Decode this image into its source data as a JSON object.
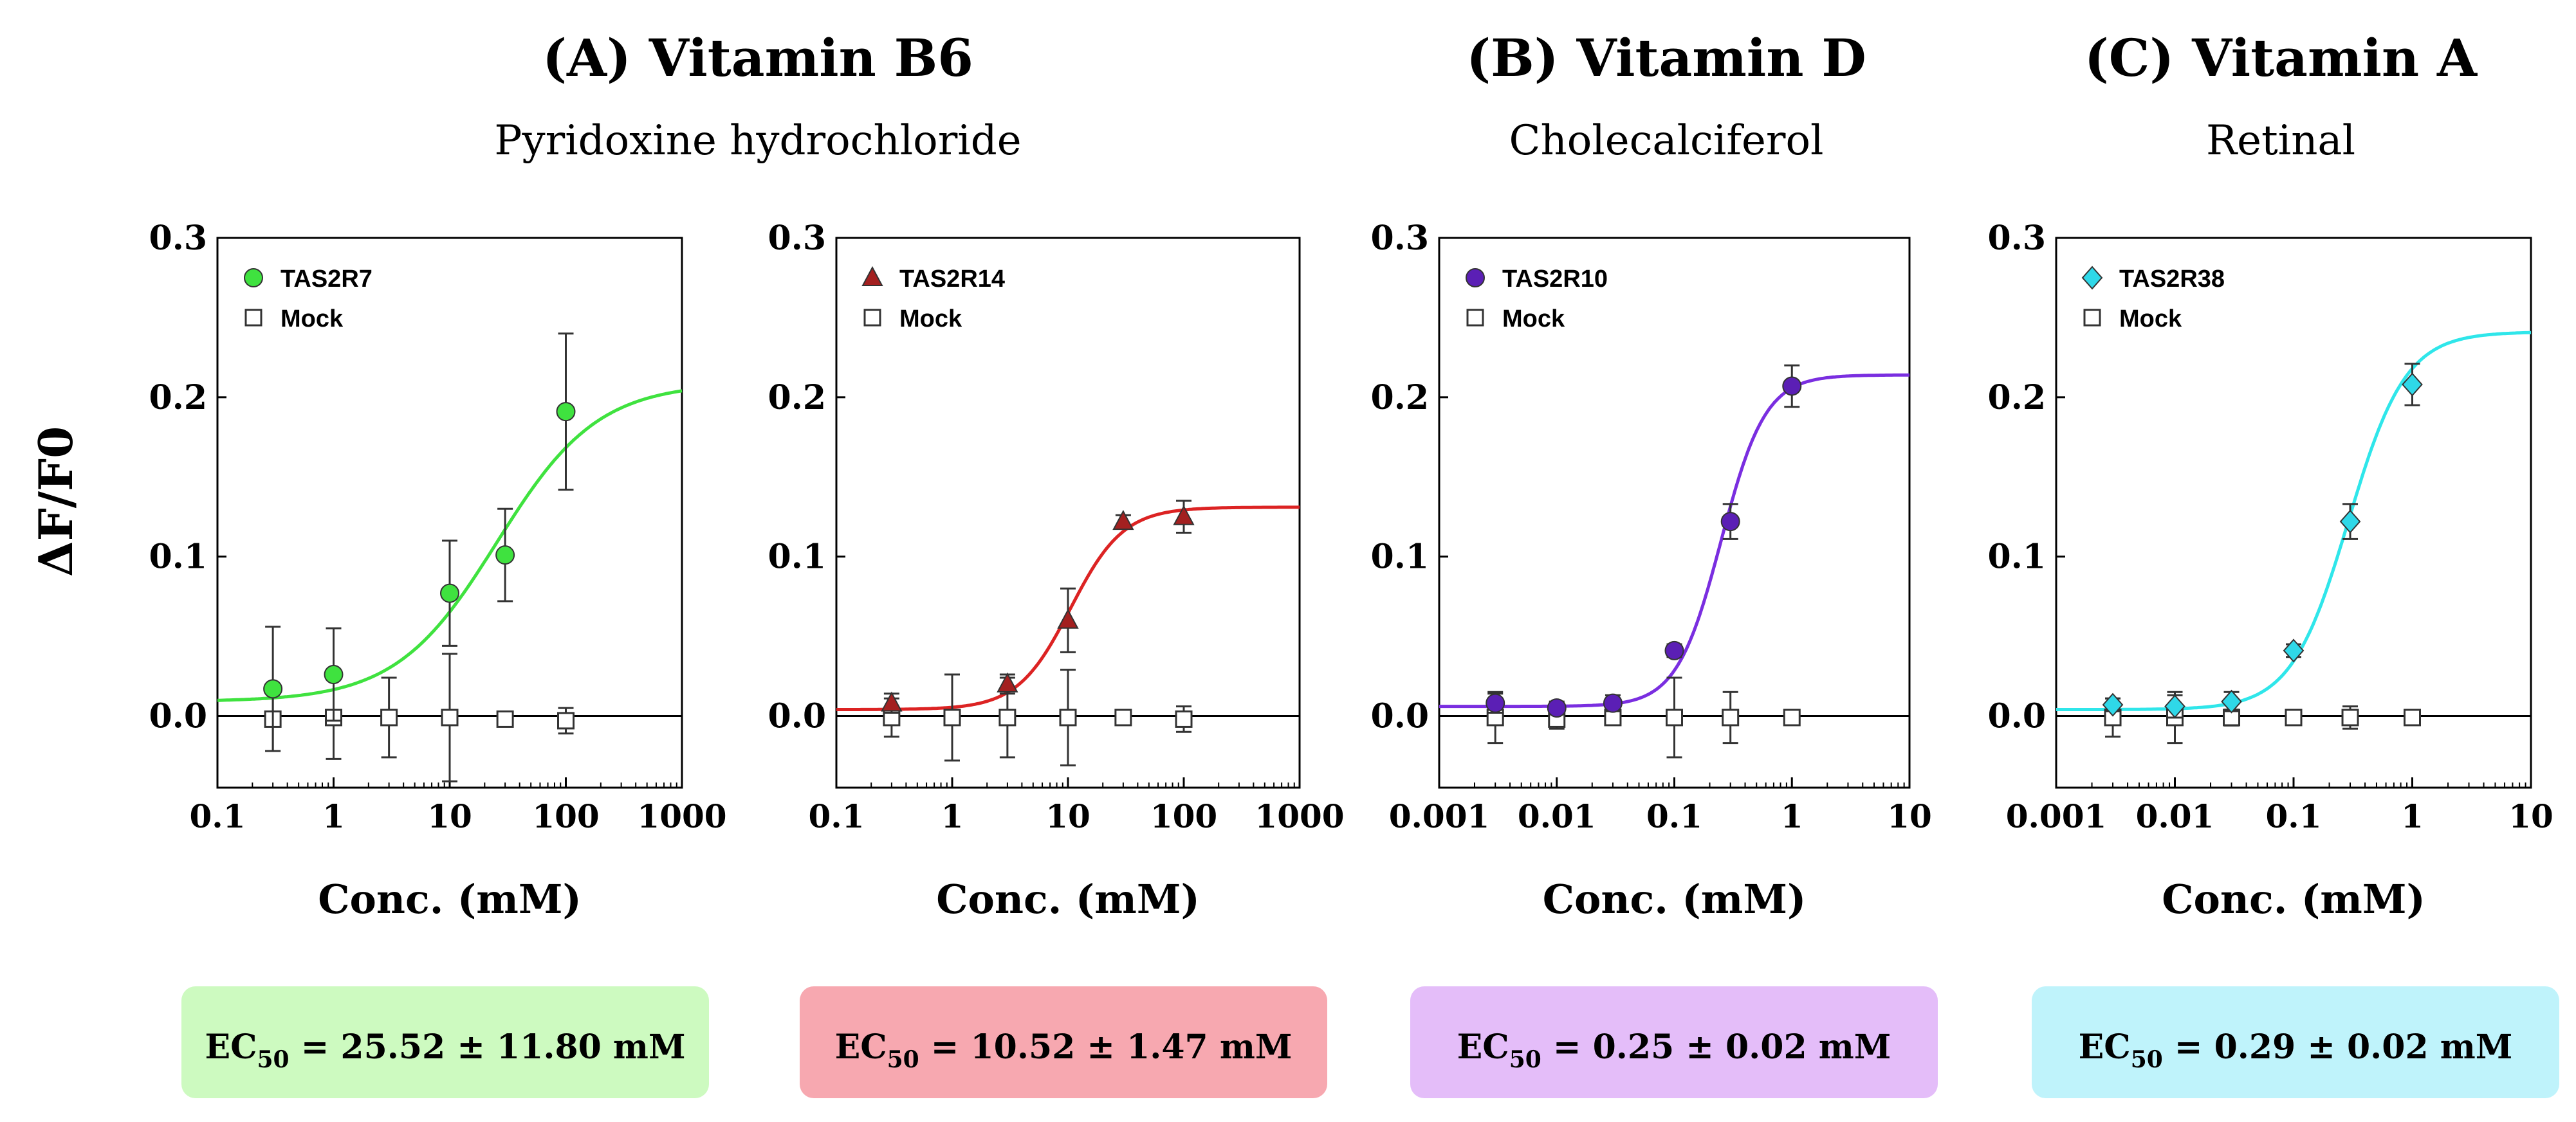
{
  "figure": {
    "ylabel": "ΔF/F0",
    "groups": [
      {
        "title": "(A) Vitamin B6",
        "compound": "Pyridoxine hydrochloride"
      },
      {
        "title": "(B) Vitamin D",
        "compound": "Cholecalciferol"
      },
      {
        "title": "(C) Vitamin A",
        "compound": "Retinal"
      }
    ]
  },
  "chart_data": [
    {
      "type": "scatter",
      "xscale": "log",
      "xlim": [
        0.1,
        1000
      ],
      "ylim": [
        -0.045,
        0.3
      ],
      "xlabel": "Conc. (mM)",
      "ylabel": "ΔF/F0",
      "xticks": [
        0.1,
        1,
        10,
        100,
        1000
      ],
      "xticklabels": [
        "0.1",
        "1",
        "10",
        "100",
        "1000"
      ],
      "yticks": [
        0.0,
        0.1,
        0.2,
        0.3
      ],
      "yticklabels": [
        "0.0",
        "0.1",
        "0.2",
        "0.3"
      ],
      "legend_position": "top-left",
      "color": "#3fe23f",
      "box_color": "#cdfac0",
      "series": [
        {
          "name": "TAS2R7",
          "marker": "circle",
          "color": "#3fe23f",
          "x": [
            0.3,
            1,
            10,
            30,
            100
          ],
          "y": [
            0.017,
            0.026,
            0.077,
            0.101,
            0.191
          ],
          "err": [
            0.039,
            0.029,
            0.033,
            0.029,
            0.049
          ]
        },
        {
          "name": "Mock",
          "marker": "square-open",
          "color": "#ffffff",
          "x": [
            0.3,
            1,
            3,
            10,
            30,
            100
          ],
          "y": [
            -0.002,
            -0.001,
            -0.001,
            -0.001,
            -0.002,
            -0.003
          ],
          "err": [
            0.02,
            0.026,
            0.025,
            0.04,
            0.003,
            0.008
          ]
        }
      ],
      "fit": {
        "bottom": 0.009,
        "top": 0.209,
        "ec50": 25.52,
        "hill": 1.0
      },
      "ec50_label": {
        "prefix": "EC",
        "sub": "50",
        "value": " = 25.52 ± 11.80 mM"
      }
    },
    {
      "type": "scatter",
      "xscale": "log",
      "xlim": [
        0.1,
        1000
      ],
      "ylim": [
        -0.045,
        0.3
      ],
      "xlabel": "Conc. (mM)",
      "ylabel": "ΔF/F0",
      "xticks": [
        0.1,
        1,
        10,
        100,
        1000
      ],
      "xticklabels": [
        "0.1",
        "1",
        "10",
        "100",
        "1000"
      ],
      "yticks": [
        0.0,
        0.1,
        0.2,
        0.3
      ],
      "yticklabels": [
        "0.0",
        "0.1",
        "0.2",
        "0.3"
      ],
      "legend_position": "top-left",
      "color": "#dc2323",
      "box_color": "#f7a8b0",
      "series": [
        {
          "name": "TAS2R14",
          "marker": "triangle",
          "color": "#a32020",
          "x": [
            0.3,
            3,
            10,
            30,
            100
          ],
          "y": [
            0.008,
            0.02,
            0.06,
            0.122,
            0.125
          ],
          "err": [
            0.006,
            0.006,
            0.02,
            0.004,
            0.01
          ]
        },
        {
          "name": "Mock",
          "marker": "square-open",
          "color": "#ffffff",
          "x": [
            0.3,
            1,
            3,
            10,
            30,
            100
          ],
          "y": [
            -0.001,
            -0.001,
            -0.001,
            -0.001,
            -0.001,
            -0.002
          ],
          "err": [
            0.012,
            0.027,
            0.025,
            0.03,
            0.002,
            0.008
          ]
        }
      ],
      "fit": {
        "bottom": 0.004,
        "top": 0.131,
        "ec50": 10.52,
        "hill": 1.9
      },
      "ec50_label": {
        "prefix": "EC",
        "sub": "50",
        "value": " = 10.52 ± 1.47 mM"
      }
    },
    {
      "type": "scatter",
      "xscale": "log",
      "xlim": [
        0.001,
        10
      ],
      "ylim": [
        -0.045,
        0.3
      ],
      "xlabel": "Conc. (mM)",
      "ylabel": "ΔF/F0",
      "xticks": [
        0.001,
        0.01,
        0.1,
        1,
        10
      ],
      "xticklabels": [
        "0.001",
        "0.01",
        "0.1",
        "1",
        "10"
      ],
      "yticks": [
        0.0,
        0.1,
        0.2,
        0.3
      ],
      "yticklabels": [
        "0.0",
        "0.1",
        "0.2",
        "0.3"
      ],
      "legend_position": "top-left",
      "color": "#7a2ee0",
      "box_color": "#e4bdf9",
      "series": [
        {
          "name": "TAS2R10",
          "marker": "circle",
          "color": "#5b1fb5",
          "x": [
            0.003,
            0.01,
            0.03,
            0.1,
            0.3,
            1
          ],
          "y": [
            0.008,
            0.005,
            0.008,
            0.041,
            0.122,
            0.207
          ],
          "err": [
            0.006,
            0.004,
            0.005,
            0.004,
            0.011,
            0.013
          ]
        },
        {
          "name": "Mock",
          "marker": "square-open",
          "color": "#ffffff",
          "x": [
            0.003,
            0.01,
            0.03,
            0.1,
            0.3,
            1
          ],
          "y": [
            -0.001,
            -0.002,
            -0.001,
            -0.001,
            -0.001,
            -0.001
          ],
          "err": [
            0.016,
            0.006,
            0.004,
            0.025,
            0.016,
            0.002
          ]
        }
      ],
      "fit": {
        "bottom": 0.006,
        "top": 0.214,
        "ec50": 0.25,
        "hill": 2.3
      },
      "ec50_label": {
        "prefix": "EC",
        "sub": "50",
        "value": " = 0.25 ± 0.02 mM"
      }
    },
    {
      "type": "scatter",
      "xscale": "log",
      "xlim": [
        0.001,
        10
      ],
      "ylim": [
        -0.045,
        0.3
      ],
      "xlabel": "Conc. (mM)",
      "ylabel": "ΔF/F0",
      "xticks": [
        0.001,
        0.01,
        0.1,
        1,
        10
      ],
      "xticklabels": [
        "0.001",
        "0.01",
        "0.1",
        "1",
        "10"
      ],
      "yticks": [
        0.0,
        0.1,
        0.2,
        0.3
      ],
      "yticklabels": [
        "0.0",
        "0.1",
        "0.2",
        "0.3"
      ],
      "legend_position": "top-left",
      "color": "#2fe6ea",
      "box_color": "#bff3fb",
      "series": [
        {
          "name": "TAS2R38",
          "marker": "diamond",
          "color": "#2fd8e8",
          "x": [
            0.003,
            0.01,
            0.03,
            0.1,
            0.3,
            1
          ],
          "y": [
            0.007,
            0.006,
            0.009,
            0.041,
            0.122,
            0.208
          ],
          "err": [
            0.004,
            0.007,
            0.006,
            0.004,
            0.011,
            0.013
          ]
        },
        {
          "name": "Mock",
          "marker": "square-open",
          "color": "#ffffff",
          "x": [
            0.003,
            0.01,
            0.03,
            0.1,
            0.3,
            1
          ],
          "y": [
            -0.001,
            -0.001,
            -0.001,
            -0.001,
            -0.001,
            -0.001
          ],
          "err": [
            0.012,
            0.016,
            0.005,
            0.003,
            0.007,
            0.004
          ]
        }
      ],
      "fit": {
        "bottom": 0.004,
        "top": 0.241,
        "ec50": 0.29,
        "hill": 1.8
      },
      "ec50_label": {
        "prefix": "EC",
        "sub": "50",
        "value": " = 0.29 ± 0.02 mM"
      }
    }
  ]
}
